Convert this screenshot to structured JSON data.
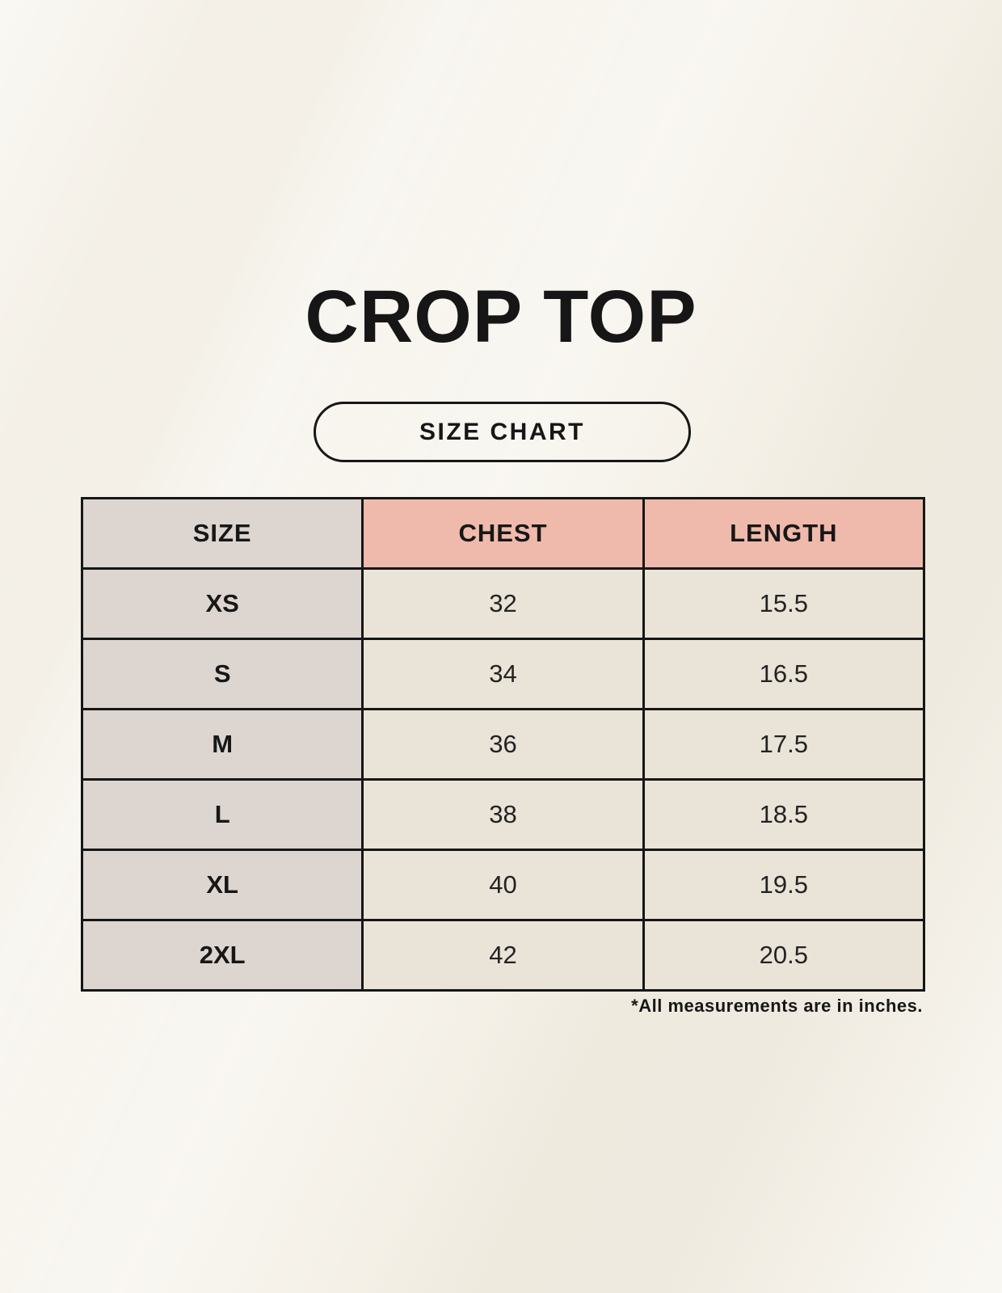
{
  "colors": {
    "background": "#f4f0e6",
    "header_accent": "#efbaab",
    "label_cell": "#dcd5d0",
    "value_cell": "#eae3d7",
    "border": "#161616",
    "text": "#1a1a1a"
  },
  "chart_data": {
    "type": "table",
    "title": "CROP TOP",
    "subtitle": "SIZE CHART",
    "columns": [
      "SIZE",
      "CHEST",
      "LENGTH"
    ],
    "rows": [
      [
        "XS",
        "32",
        "15.5"
      ],
      [
        "S",
        "34",
        "16.5"
      ],
      [
        "M",
        "36",
        "17.5"
      ],
      [
        "L",
        "38",
        "18.5"
      ],
      [
        "XL",
        "40",
        "19.5"
      ],
      [
        "2XL",
        "42",
        "20.5"
      ]
    ],
    "note": "*All measurements are in inches.",
    "units": "inches",
    "layout": "3-column size chart table, header row tinted, first column tinted"
  }
}
